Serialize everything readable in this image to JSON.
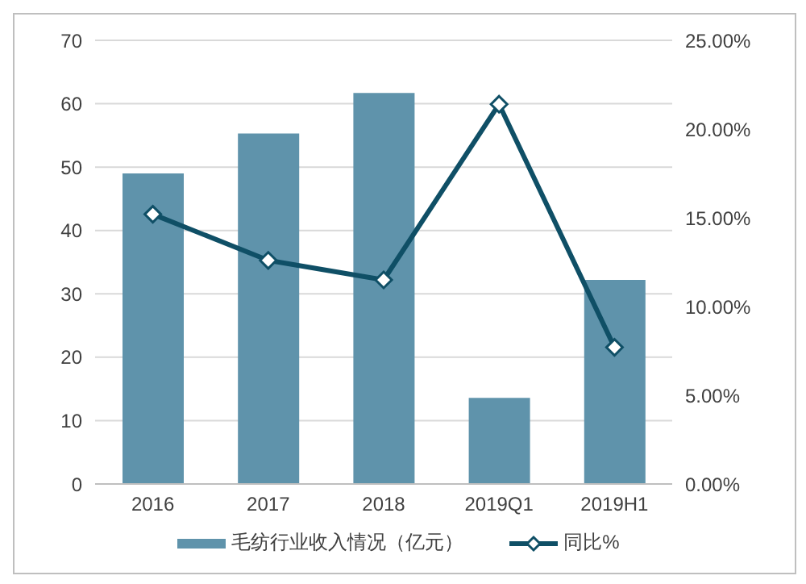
{
  "chart_data": {
    "type": "bar",
    "categories": [
      "2016",
      "2017",
      "2018",
      "2019Q1",
      "2019H1"
    ],
    "series": [
      {
        "name": "毛纺行业收入情况（亿元）",
        "color": "#5f93ab",
        "values": [
          49.0,
          55.3,
          61.7,
          13.6,
          32.2
        ]
      },
      {
        "name": "同比%",
        "type": "line",
        "axis": "y2",
        "color": "#0f4f66",
        "values": [
          15.2,
          12.6,
          11.5,
          21.4,
          7.7
        ]
      }
    ],
    "ylim": [
      0,
      70
    ],
    "yticks": [
      0,
      10,
      20,
      30,
      40,
      50,
      60,
      70
    ],
    "y2lim": [
      0,
      25
    ],
    "y2ticks": [
      {
        "value": 0,
        "label": "0.00%"
      },
      {
        "value": 5,
        "label": "5.00%"
      },
      {
        "value": 10,
        "label": "10.00%"
      },
      {
        "value": 15,
        "label": "15.00%"
      },
      {
        "value": 20,
        "label": "20.00%"
      },
      {
        "value": 25,
        "label": "25.00%"
      }
    ],
    "grid": "y",
    "legend": "bottom",
    "marker": "diamond"
  }
}
